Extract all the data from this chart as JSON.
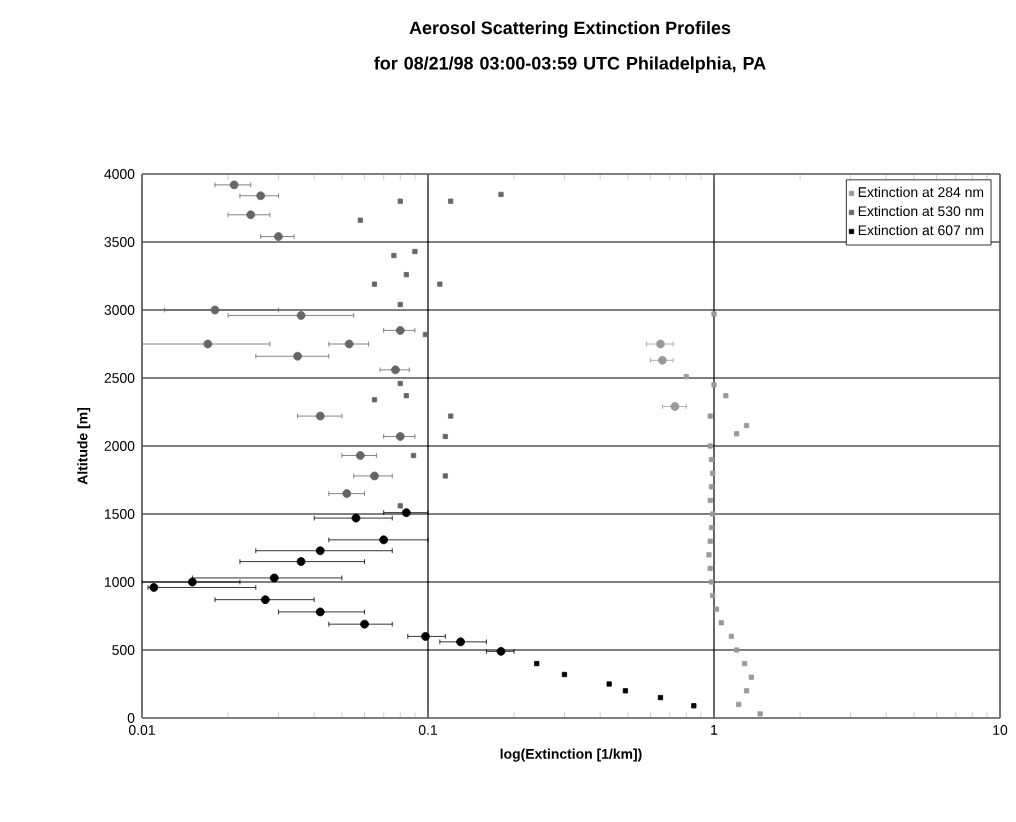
{
  "chart_data": {
    "type": "scatter",
    "title": "Aerosol Scattering Extinction Profiles",
    "subtitle": "for 08/21/98 03:00-03:59 UTC Philadelphia, PA",
    "xlabel": "log(Extinction [1/km])",
    "ylabel": "Altitude [m]",
    "log": "x",
    "xlim": [
      0.01,
      10
    ],
    "xticks": [
      0.01,
      0.1,
      1,
      10
    ],
    "ylim": [
      0,
      4000
    ],
    "yticks": [
      0,
      500,
      1000,
      1500,
      2000,
      2500,
      3000,
      3500,
      4000
    ],
    "grid": true,
    "legend": "top right",
    "marker": "square",
    "series": [
      {
        "name": "Extinction at 284 nm",
        "color": "#9a9a9a",
        "x": [
          1.45,
          1.22,
          1.3,
          1.35,
          1.28,
          1.2,
          1.15,
          1.06,
          1.02,
          0.99,
          0.98,
          0.97,
          0.96,
          0.97,
          0.98,
          0.99,
          0.97,
          0.98,
          0.99,
          0.98,
          0.97,
          1.3,
          1.2,
          0.97,
          0.73,
          1.1,
          1.0,
          0.8,
          0.66,
          0.65,
          1.0
        ],
        "values": [
          30,
          100,
          200,
          300,
          400,
          500,
          600,
          700,
          800,
          900,
          1000,
          1100,
          1200,
          1300,
          1400,
          1500,
          1600,
          1700,
          1800,
          1900,
          2000,
          2150,
          2090,
          2220,
          2290,
          2370,
          2450,
          2510,
          2630,
          2750,
          2970
        ],
        "xerrors": [
          null,
          null,
          null,
          null,
          null,
          null,
          null,
          null,
          null,
          null,
          null,
          null,
          null,
          null,
          null,
          null,
          null,
          null,
          null,
          null,
          null,
          null,
          null,
          null,
          [
            0.66,
            0.8
          ],
          null,
          null,
          null,
          [
            0.6,
            0.72
          ],
          [
            0.58,
            0.72
          ],
          null
        ]
      },
      {
        "name": "Extinction at 530 nm",
        "color": "#666666",
        "x": [
          0.08,
          0.052,
          0.065,
          0.115,
          0.058,
          0.089,
          0.08,
          0.115,
          0.042,
          0.12,
          0.065,
          0.084,
          0.08,
          0.077,
          0.098,
          0.08,
          0.035,
          0.053,
          0.017,
          0.018,
          0.036,
          0.08,
          0.11,
          0.065,
          0.084,
          0.076,
          0.09,
          0.03,
          0.024,
          0.058,
          0.026,
          0.08,
          0.021,
          0.12,
          0.18
        ],
        "values": [
          1560,
          1650,
          1780,
          1780,
          1930,
          1930,
          2070,
          2070,
          2220,
          2220,
          2340,
          2370,
          2460,
          2560,
          2820,
          2850,
          2660,
          2750,
          2750,
          3000,
          2960,
          3040,
          3190,
          3190,
          3260,
          3400,
          3430,
          3540,
          3700,
          3660,
          3840,
          3800,
          3920,
          3800,
          3850
        ],
        "xerrors": [
          null,
          [
            0.045,
            0.06
          ],
          [
            0.055,
            0.075
          ],
          null,
          [
            0.05,
            0.066
          ],
          null,
          [
            0.07,
            0.09
          ],
          null,
          [
            0.035,
            0.05
          ],
          null,
          null,
          null,
          null,
          [
            0.068,
            0.086
          ],
          null,
          [
            0.07,
            0.09
          ],
          [
            0.025,
            0.045
          ],
          [
            0.045,
            0.062
          ],
          [
            0.01,
            0.028
          ],
          [
            0.012,
            0.03
          ],
          [
            0.02,
            0.055
          ],
          null,
          null,
          null,
          null,
          null,
          null,
          [
            0.026,
            0.034
          ],
          [
            0.02,
            0.028
          ],
          null,
          [
            0.022,
            0.03
          ],
          null,
          [
            0.018,
            0.024
          ],
          null,
          null
        ]
      },
      {
        "name": "Extinction at 607 nm",
        "color": "#000000",
        "x": [
          0.85,
          0.65,
          0.49,
          0.43,
          0.3,
          0.24,
          0.18,
          0.13,
          0.098,
          0.06,
          0.042,
          0.027,
          0.015,
          0.011,
          0.029,
          0.036,
          0.042,
          0.07,
          0.056,
          0.084
        ],
        "values": [
          90,
          150,
          200,
          250,
          320,
          400,
          490,
          560,
          600,
          690,
          780,
          870,
          1000,
          960,
          1030,
          1150,
          1230,
          1310,
          1470,
          1510
        ],
        "xerrors": [
          null,
          null,
          null,
          null,
          null,
          null,
          [
            0.16,
            0.2
          ],
          [
            0.11,
            0.16
          ],
          [
            0.085,
            0.115
          ],
          [
            0.045,
            0.075
          ],
          [
            0.03,
            0.06
          ],
          [
            0.018,
            0.04
          ],
          [
            0.01,
            0.022
          ],
          [
            0.0105,
            0.025
          ],
          [
            0.015,
            0.05
          ],
          [
            0.022,
            0.06
          ],
          [
            0.025,
            0.075
          ],
          [
            0.045,
            0.1
          ],
          [
            0.04,
            0.075
          ],
          [
            0.07,
            0.1
          ]
        ]
      }
    ]
  }
}
